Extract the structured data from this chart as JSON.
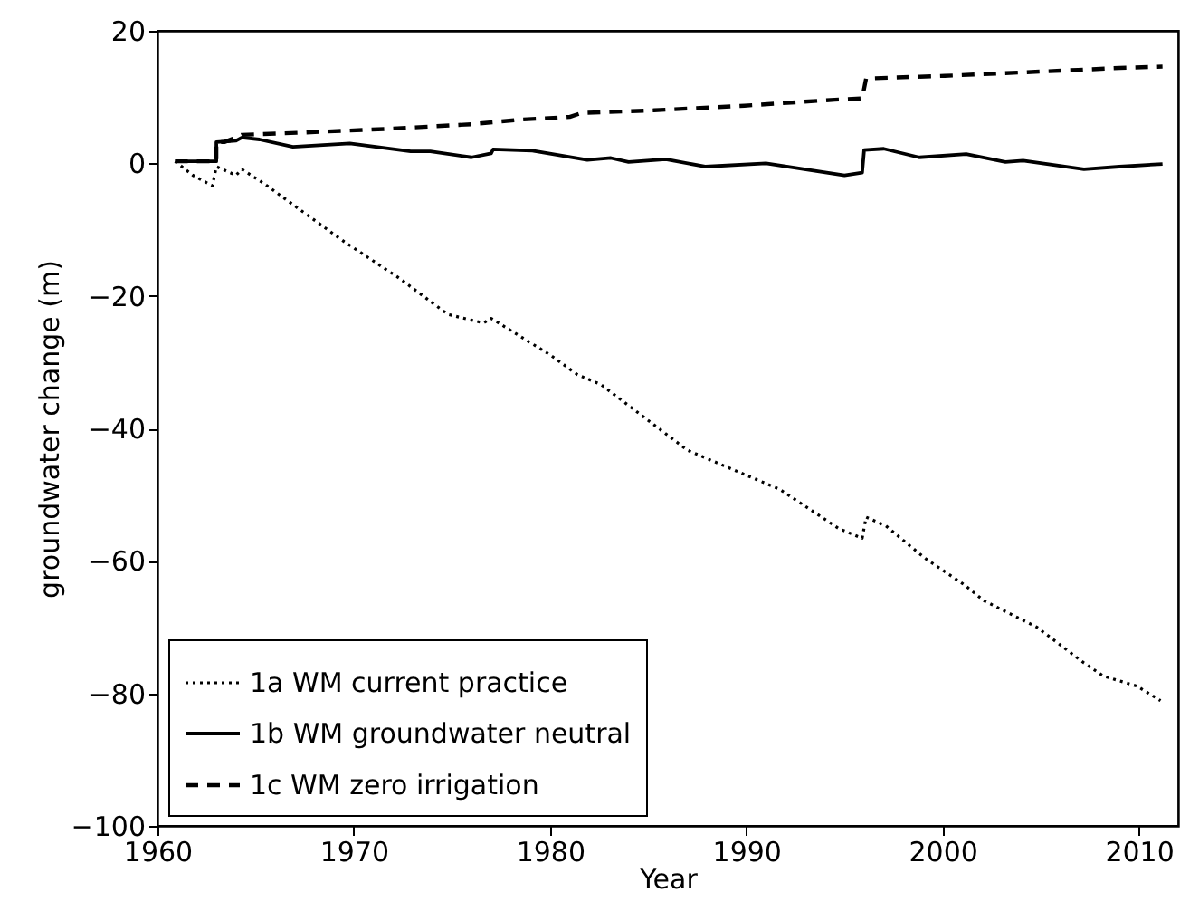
{
  "chart_data": {
    "type": "line",
    "xlabel": "Year",
    "ylabel": "groundwater change (m)",
    "xlim": [
      1960,
      2012
    ],
    "ylim": [
      -100,
      20
    ],
    "xticks": [
      1960,
      1970,
      1980,
      1990,
      2000,
      2010
    ],
    "yticks": [
      -100,
      -80,
      -60,
      -40,
      -20,
      0,
      20
    ],
    "grid": false,
    "legend": "bottom left",
    "marker": "none",
    "series": [
      {
        "name": "1a WM current practice",
        "color": "#000000",
        "line_style": "dotted",
        "x": [
          1960.9,
          1961.8,
          1962.8,
          1963,
          1964,
          1964.3,
          1965.5,
          1967.4,
          1969.5,
          1972.3,
          1974.8,
          1976.6,
          1977,
          1980,
          1981.4,
          1982.6,
          1985,
          1987,
          1989.7,
          1991.7,
          1994.7,
          1995.9,
          1996.1,
          1997.1,
          1999.1,
          2001.1,
          2002.1,
          2004.8,
          2007.2,
          2008.2,
          2009.9,
          2011.1
        ],
        "values": [
          0.3,
          -1.8,
          -3.4,
          -0.5,
          -1.8,
          -0.9,
          -3.2,
          -7.3,
          -11.8,
          -17.3,
          -22.8,
          -24.1,
          -23.4,
          -28.9,
          -31.9,
          -33.4,
          -38.8,
          -43.3,
          -46.7,
          -49.2,
          -55.1,
          -56.6,
          -53.4,
          -54.7,
          -59.6,
          -63.6,
          -66,
          -70,
          -75.4,
          -77.4,
          -78.9,
          -81.1
        ]
      },
      {
        "name": "1b WM groundwater neutral",
        "color": "#000000",
        "line_style": "solid",
        "x": [
          1960.9,
          1963,
          1963,
          1964,
          1964.3,
          1965.2,
          1966.9,
          1969.8,
          1972.9,
          1973.9,
          1976,
          1977,
          1977.1,
          1979.1,
          1981.9,
          1983.1,
          1984,
          1985.9,
          1987.9,
          1991,
          1995,
          1995.9,
          1996,
          1997,
          1998.8,
          2001.2,
          2003.2,
          2004.1,
          2007.2,
          2009,
          2011.2
        ],
        "values": [
          0.3,
          0.3,
          3.2,
          3.4,
          3.9,
          3.6,
          2.5,
          3,
          1.8,
          1.8,
          0.9,
          1.5,
          2.1,
          1.9,
          0.5,
          0.8,
          0.2,
          0.6,
          -0.5,
          0,
          -1.8,
          -1.4,
          2,
          2.2,
          0.9,
          1.4,
          0.2,
          0.4,
          -0.9,
          -0.5,
          -0.1
        ]
      },
      {
        "name": "1c WM zero irrigation",
        "color": "#000000",
        "line_style": "dashed",
        "x": [
          1960.9,
          1963,
          1963,
          1963.4,
          1964,
          1964.3,
          1967.1,
          1971.7,
          1976,
          1978.5,
          1981,
          1981.6,
          1985.3,
          1989.9,
          1994.5,
          1995.9,
          1996.1,
          2000.1,
          2006.9,
          2009,
          2011.2
        ],
        "values": [
          0.3,
          0.3,
          3.2,
          3.2,
          3.9,
          4.3,
          4.6,
          5.2,
          5.9,
          6.6,
          7,
          7.6,
          8,
          8.7,
          9.6,
          9.8,
          12.8,
          13.2,
          14.1,
          14.4,
          14.6
        ]
      }
    ]
  }
}
